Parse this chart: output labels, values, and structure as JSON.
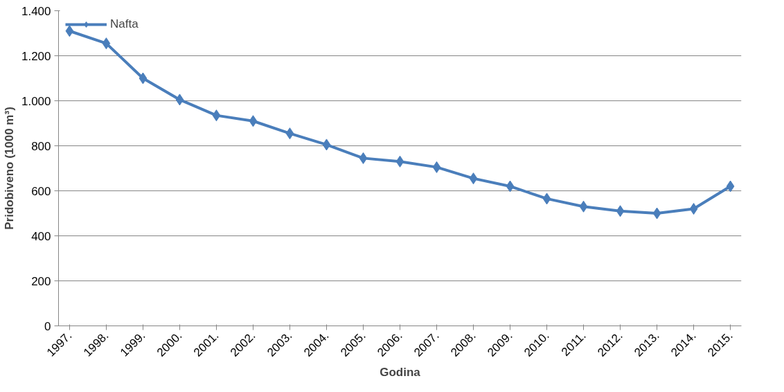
{
  "chart_data": {
    "type": "line",
    "xlabel": "Godina",
    "ylabel": "Pridobiveno (1000 m³)",
    "categories": [
      "1997.",
      "1998.",
      "1999.",
      "2000.",
      "2001.",
      "2002.",
      "2003.",
      "2004.",
      "2005.",
      "2006.",
      "2007.",
      "2008.",
      "2009.",
      "2010.",
      "2011.",
      "2012.",
      "2013.",
      "2014.",
      "2015."
    ],
    "series": [
      {
        "name": "Nafta",
        "color": "#4a7ebb",
        "values": [
          1310,
          1255,
          1100,
          1005,
          935,
          910,
          855,
          805,
          745,
          730,
          705,
          655,
          620,
          565,
          530,
          510,
          500,
          520,
          620
        ]
      }
    ],
    "ylim": [
      0,
      1400
    ],
    "yticks": [
      0,
      200,
      400,
      600,
      800,
      {
        "value": 1000,
        "label": "1.000"
      },
      {
        "value": 1200,
        "label": "1.200"
      },
      {
        "value": 1400,
        "label": "1.400"
      }
    ],
    "grid": "y",
    "legend": "top left",
    "marker": "diamond",
    "line_style": "solid"
  }
}
